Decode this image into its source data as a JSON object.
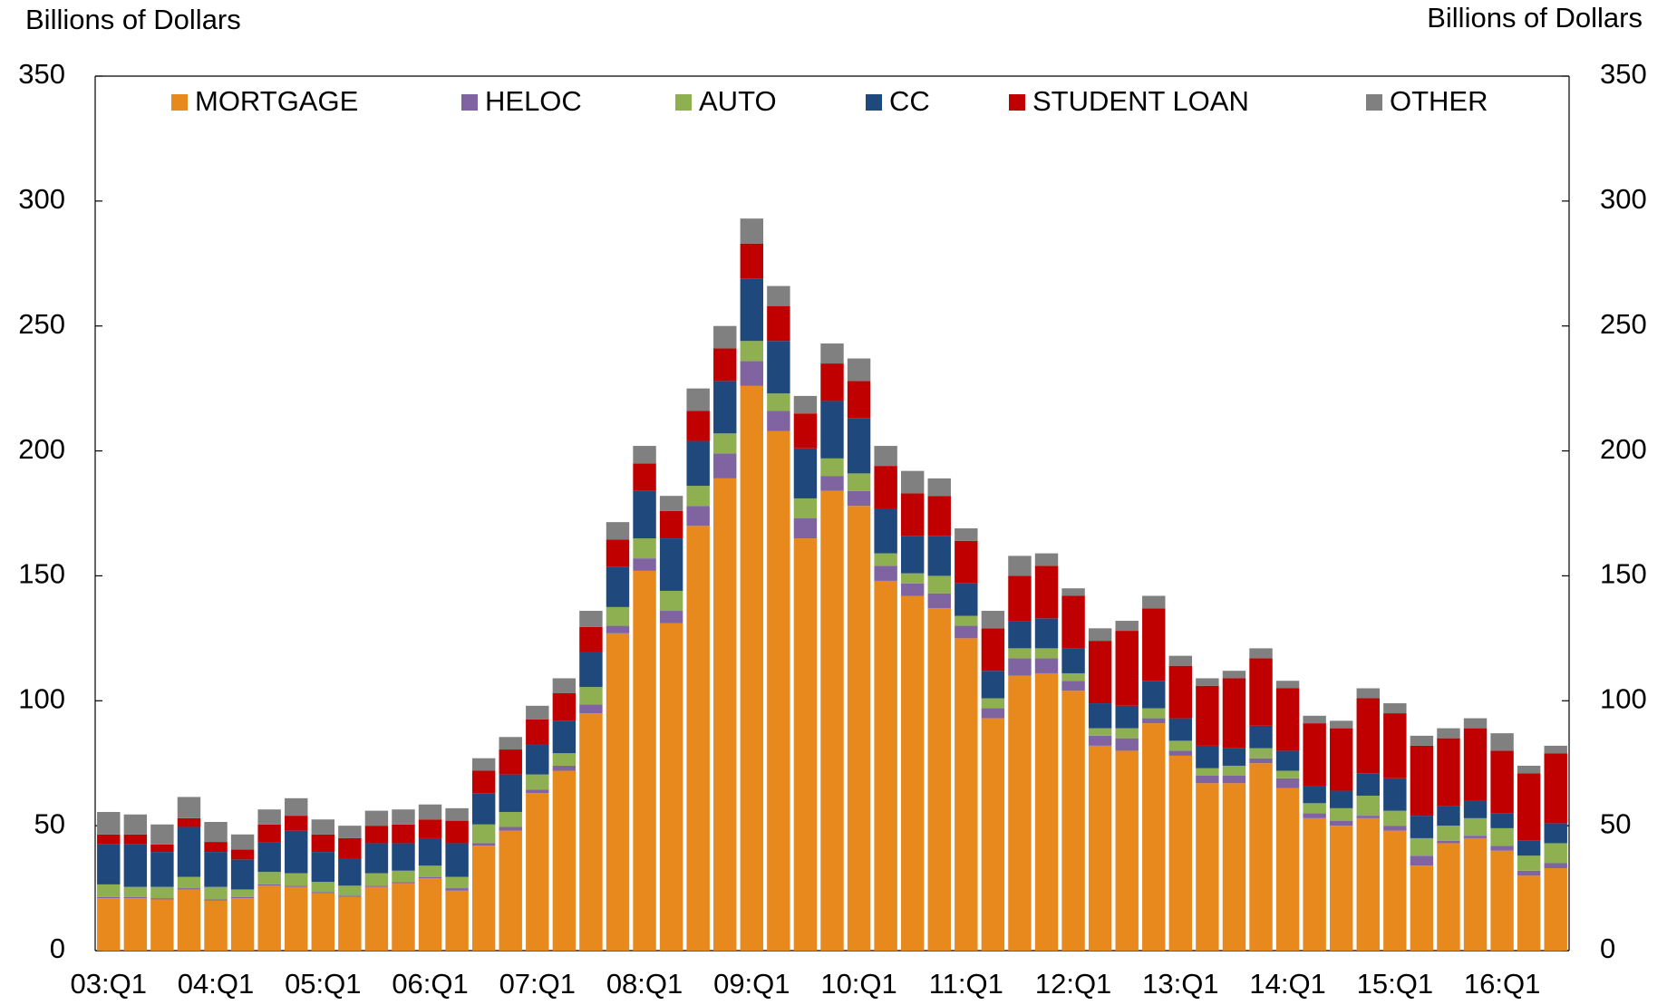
{
  "chart_data": {
    "type": "stacked_bar",
    "y_label": "Billions of Dollars",
    "y2_label": "Billions of Dollars",
    "categories": [
      "03:Q1",
      null,
      null,
      null,
      "04:Q1",
      null,
      null,
      null,
      "05:Q1",
      null,
      null,
      null,
      "06:Q1",
      null,
      null,
      null,
      "07:Q1",
      null,
      null,
      null,
      "08:Q1",
      null,
      null,
      null,
      "09:Q1",
      null,
      null,
      null,
      "10:Q1",
      null,
      null,
      null,
      "11:Q1",
      null,
      null,
      null,
      "12:Q1",
      null,
      null,
      null,
      "13:Q1",
      null,
      null,
      null,
      "14:Q1",
      null,
      null,
      null,
      "15:Q1",
      null,
      null,
      null,
      "16:Q1",
      null,
      null
    ],
    "series": [
      {
        "name": "MORTGAGE",
        "color": "#e8891d",
        "values": [
          21,
          21,
          20.5,
          24.5,
          20,
          21,
          26,
          25.5,
          23,
          21.5,
          25.5,
          27,
          29,
          24,
          42,
          48,
          63,
          72,
          95,
          127,
          152,
          131,
          170,
          189,
          226,
          208,
          165,
          184,
          178,
          148,
          142,
          137,
          125,
          93,
          110,
          111,
          104,
          82,
          80,
          91,
          78,
          67,
          67,
          75,
          65,
          53,
          50,
          53,
          48,
          34,
          43,
          45,
          40,
          30,
          33
        ]
      },
      {
        "name": "HELOC",
        "color": "#8064a2",
        "values": [
          0.5,
          0.5,
          0.5,
          0.5,
          0.5,
          0.5,
          0.5,
          0.5,
          0.5,
          0.5,
          0.5,
          0.5,
          0.5,
          1,
          1,
          1.5,
          1.5,
          2,
          3.5,
          3,
          5,
          5,
          8,
          10,
          10,
          8,
          8,
          6,
          6,
          6,
          5,
          6,
          5,
          4,
          7,
          6,
          4,
          4,
          5,
          2,
          2,
          3,
          3,
          2,
          4,
          2,
          2,
          1,
          2,
          4,
          1,
          1,
          2,
          2,
          2
        ]
      },
      {
        "name": "AUTO",
        "color": "#8fb050",
        "values": [
          5,
          4,
          4.5,
          4.5,
          5,
          3,
          5,
          5,
          4,
          4,
          5,
          4.5,
          4.5,
          4.5,
          7.5,
          6,
          6,
          5,
          7,
          7.5,
          8,
          8,
          8,
          8,
          8,
          7,
          8,
          7,
          7,
          5,
          4,
          7,
          4,
          4,
          4,
          4,
          3,
          3,
          4,
          4,
          4,
          3,
          4,
          4,
          3,
          4,
          5,
          8,
          6,
          7,
          6,
          7,
          7,
          6,
          8
        ]
      },
      {
        "name": "CC",
        "color": "#1f497d",
        "values": [
          16,
          17,
          14,
          20,
          14,
          12,
          12,
          17,
          12,
          11,
          12,
          11,
          11,
          13.5,
          12.5,
          15,
          12,
          13,
          14,
          16,
          19,
          21,
          18,
          21,
          25,
          21,
          20,
          23,
          22,
          18,
          15,
          16,
          13,
          11,
          11,
          12,
          10,
          10,
          9,
          11,
          9,
          9,
          7,
          9,
          8,
          7,
          7,
          9,
          13,
          9,
          8,
          7,
          6,
          6,
          8
        ]
      },
      {
        "name": "STUDENT LOAN",
        "color": "#c00000",
        "values": [
          4,
          4,
          3,
          3.5,
          4,
          4,
          7,
          6,
          7,
          8,
          7,
          7.5,
          7.5,
          9,
          9,
          10,
          10,
          11,
          10,
          11,
          11,
          11,
          12,
          13,
          14,
          14,
          14,
          15,
          15,
          17,
          17,
          16,
          17,
          17,
          18,
          21,
          21,
          25,
          30,
          29,
          21,
          24,
          28,
          27,
          25,
          25,
          25,
          30,
          26,
          28,
          27,
          29,
          25,
          27,
          28
        ]
      },
      {
        "name": "OTHER",
        "color": "#808080",
        "values": [
          9,
          8,
          8,
          8.5,
          8,
          6,
          6,
          7,
          6,
          5,
          6,
          6,
          6,
          5,
          5,
          5,
          5.5,
          6,
          6.5,
          7,
          7,
          6,
          9,
          9,
          10,
          8,
          7,
          8,
          9,
          8,
          9,
          7,
          5,
          7,
          8,
          5,
          3,
          5,
          4,
          5,
          4,
          3,
          3,
          4,
          3,
          3,
          3,
          4,
          4,
          4,
          4,
          4,
          7,
          3,
          3
        ]
      }
    ],
    "ylim": [
      0,
      350
    ],
    "yticks": [
      0,
      50,
      100,
      150,
      200,
      250,
      300,
      350
    ],
    "y2lim": [
      0,
      350
    ],
    "y2ticks": [
      0,
      50,
      100,
      150,
      200,
      250,
      300,
      350
    ],
    "legend": "top"
  }
}
